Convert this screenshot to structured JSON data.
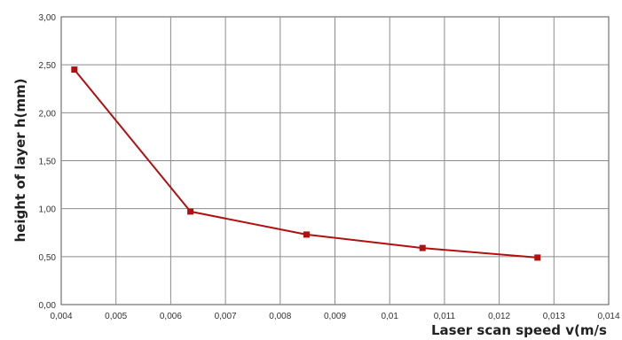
{
  "chart_data": {
    "type": "line",
    "title": "",
    "xlabel": "Laser scan speed  v(m/s",
    "ylabel": "height of layer h(mm)",
    "xlim": [
      0.004,
      0.014
    ],
    "ylim": [
      0,
      3
    ],
    "x_ticks": [
      "0,004",
      "0,005",
      "0,006",
      "0,007",
      "0,008",
      "0,009",
      "0,01",
      "0,011",
      "0,012",
      "0,013",
      "0,014"
    ],
    "y_ticks": [
      "0,00",
      "0,50",
      "1,00",
      "1,50",
      "2,00",
      "2,50",
      "3,00"
    ],
    "grid": true,
    "legend": "none",
    "series": [
      {
        "x": [
          0.00424,
          0.00636,
          0.00848,
          0.0106,
          0.0127
        ],
        "y": [
          2.45,
          0.97,
          0.73,
          0.59,
          0.49
        ],
        "color": "#b01010"
      }
    ]
  }
}
